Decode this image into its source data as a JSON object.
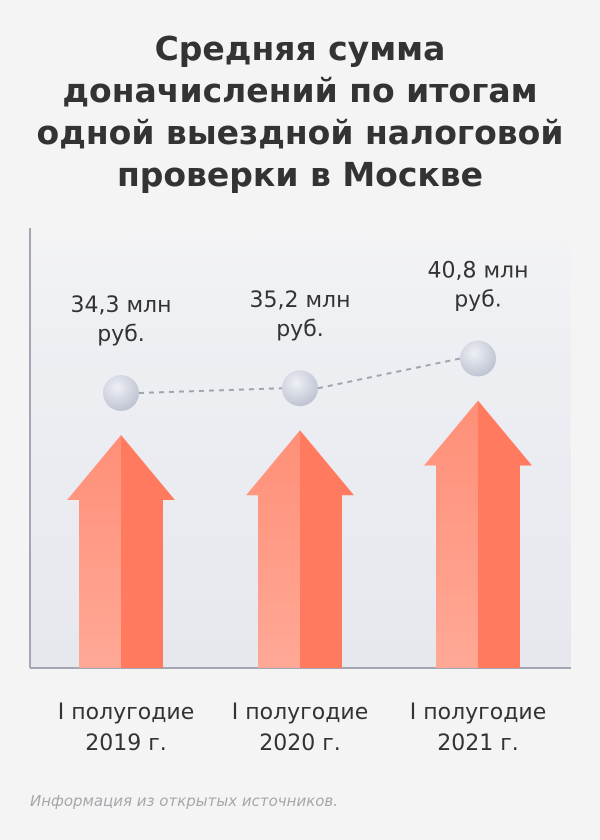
{
  "chart_data": {
    "type": "bar",
    "title": "Средняя сумма доначислений по итогам одной выездной налоговой проверки в Москве",
    "categories": [
      [
        "I полугодие",
        "2019 г."
      ],
      [
        "I полугодие",
        "2020 г."
      ],
      [
        "I полугодие",
        "2021 г."
      ]
    ],
    "values": [
      34.3,
      35.2,
      40.8
    ],
    "value_labels": [
      [
        "34,3 млн",
        "руб."
      ],
      [
        "35,2 млн",
        "руб."
      ],
      [
        "40,8 млн",
        "руб."
      ]
    ],
    "unit": "млн руб.",
    "mark": "arrow",
    "overlay_line": true,
    "grid": false,
    "legend": "none",
    "colors": {
      "arrow_light": "#ff9e88",
      "arrow_dark": "#ff7a5f",
      "dot": "#c8ccd8",
      "connector": "#a0a4ad",
      "axis": "#a3a7b2",
      "plot_background": "#e9ebf1"
    }
  },
  "source_note": "Информация из открытых источников."
}
